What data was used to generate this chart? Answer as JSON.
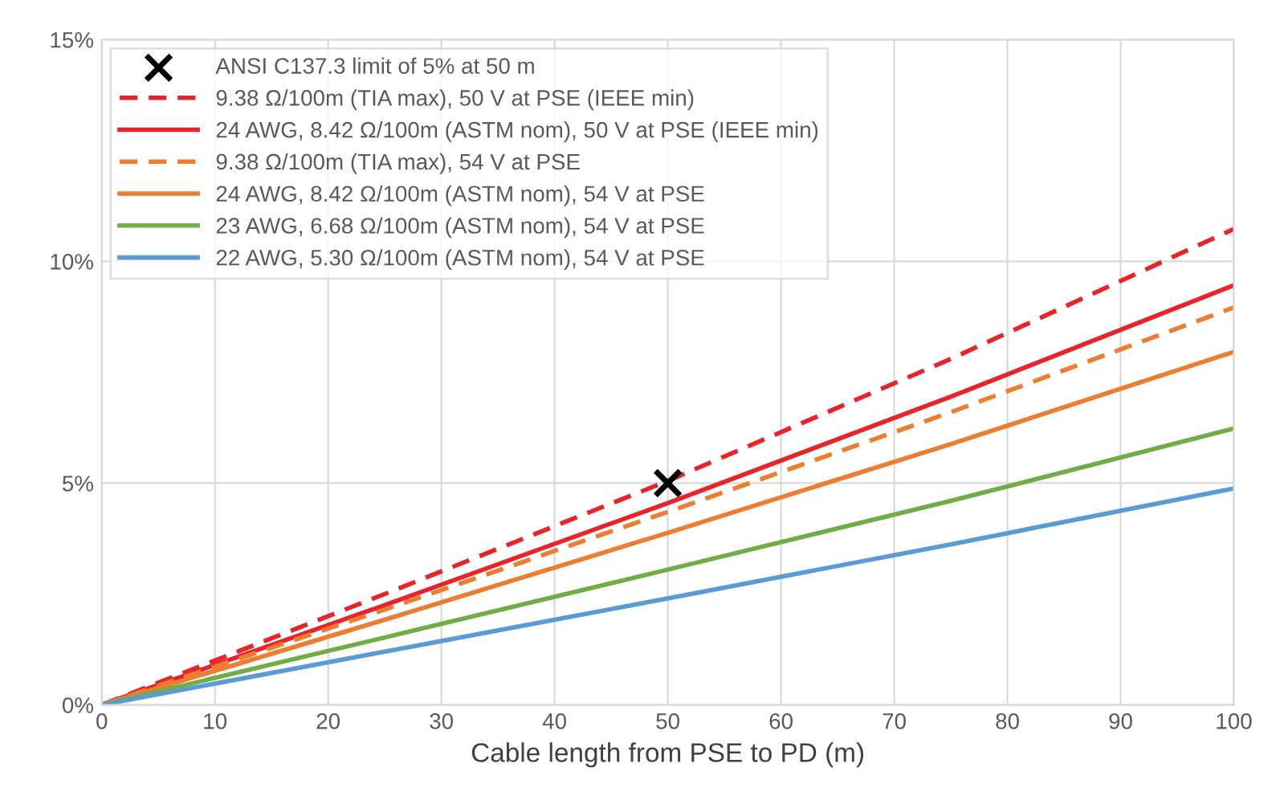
{
  "chart_data": {
    "type": "line",
    "xlabel": "Cable length from PSE to PD (m)",
    "x": [
      0,
      25,
      50,
      75,
      100
    ],
    "xlim": [
      0,
      100
    ],
    "xticks": [
      0,
      10,
      20,
      30,
      40,
      50,
      60,
      70,
      80,
      90,
      100
    ],
    "ylim": [
      0,
      15
    ],
    "yticks": [
      {
        "value": 0,
        "label": "0%"
      },
      {
        "value": 5,
        "label": "5%"
      },
      {
        "value": 10,
        "label": "10%"
      },
      {
        "value": 15,
        "label": "15%"
      }
    ],
    "grid": true,
    "legend": "top left",
    "series": [
      {
        "name": "ANSI C137.3 limit of 5% at 50 m",
        "type": "scatter",
        "marker": "cross",
        "color": "#000000",
        "x": [
          50
        ],
        "values": [
          5
        ]
      },
      {
        "name": "9.38 Ω/100m (TIA max), 50 V at PSE (IEEE min)",
        "color": "#e8242a",
        "line_style": "dashed",
        "values": [
          0,
          2.5,
          5.05,
          7.8,
          10.73
        ]
      },
      {
        "name": "24 AWG, 8.42 Ω/100m (ASTM nom), 50 V at PSE (IEEE min)",
        "color": "#e8242a",
        "line_style": "solid",
        "values": [
          0,
          2.25,
          4.55,
          6.95,
          9.46
        ]
      },
      {
        "name": "9.38 Ω/100m (TIA max), 54 V at PSE",
        "color": "#ed7d31",
        "line_style": "dashed",
        "values": [
          0,
          2.15,
          4.35,
          6.6,
          8.96
        ]
      },
      {
        "name": "24 AWG, 8.42 Ω/100m (ASTM nom), 54 V at PSE",
        "color": "#ed7d31",
        "line_style": "solid",
        "values": [
          0,
          1.92,
          3.88,
          5.88,
          7.96
        ]
      },
      {
        "name": "23 AWG, 6.68 Ω/100m (ASTM nom), 54 V at PSE",
        "color": "#70ad47",
        "line_style": "solid",
        "values": [
          0,
          1.52,
          3.05,
          4.6,
          6.23
        ]
      },
      {
        "name": "22 AWG, 5.30 Ω/100m (ASTM nom), 54 V at PSE",
        "color": "#5b9bd5",
        "line_style": "solid",
        "values": [
          0,
          1.2,
          2.4,
          3.62,
          4.88
        ]
      }
    ]
  }
}
